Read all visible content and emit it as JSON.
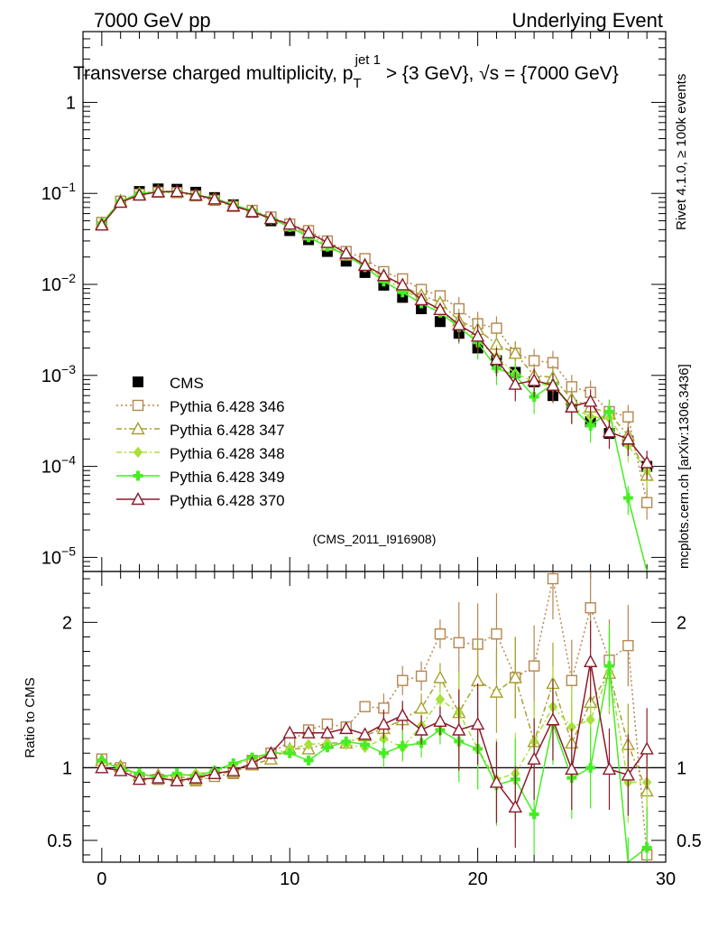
{
  "header": {
    "left": "7000 GeV pp",
    "right": "Underlying Event"
  },
  "side_text": {
    "top": "Rivet 4.1.0, ≥ 100k events",
    "bottom": "mcplots.cern.ch [arXiv:1306.3436]"
  },
  "chart_data": {
    "type": "scatter",
    "title": "Transverse charged multiplicity, p_T^jet 1 > {3 GeV}, √s = {7000 GeV}",
    "title_parts": {
      "pre": "Transverse charged multiplicity, p",
      "sub": "T",
      "sup": "jet 1",
      "mid": " > {3 GeV}, ",
      "sqrt": "√s",
      "post": " = {7000 GeV}"
    },
    "analysis_label": "(CMS_2011_I916908)",
    "xlim": [
      -1,
      30
    ],
    "x_ticks": [
      "0",
      "10",
      "20",
      "30"
    ],
    "x_tick_values": [
      0,
      10,
      20,
      30
    ],
    "main": {
      "yscale": "log",
      "ylim": [
        7e-06,
        6
      ],
      "y_ticks": [
        {
          "value": 1,
          "base": "1",
          "exp": ""
        },
        {
          "value": 0.1,
          "base": "10",
          "exp": "−1"
        },
        {
          "value": 0.01,
          "base": "10",
          "exp": "−2"
        },
        {
          "value": 0.001,
          "base": "10",
          "exp": "−3"
        },
        {
          "value": 0.0001,
          "base": "10",
          "exp": "−4"
        },
        {
          "value": 1e-05,
          "base": "10",
          "exp": "−5"
        }
      ]
    },
    "ratio": {
      "ylabel": "Ratio to CMS",
      "ylim": [
        0.35,
        2.35
      ],
      "y_ticks": [
        {
          "value": 0.5,
          "label": "0.5"
        },
        {
          "value": 1,
          "label": "1"
        },
        {
          "value": 2,
          "label": "2"
        }
      ],
      "reference": 1
    },
    "x": [
      0,
      1,
      2,
      3,
      4,
      5,
      6,
      7,
      8,
      9,
      10,
      11,
      12,
      13,
      14,
      15,
      16,
      17,
      18,
      19,
      20,
      21,
      22,
      23,
      24,
      25,
      26,
      27,
      28,
      29
    ],
    "data": {
      "name": "CMS",
      "color": "#000000",
      "values": [
        0.045,
        0.082,
        0.105,
        0.112,
        0.111,
        0.103,
        0.09,
        0.075,
        0.062,
        0.05,
        0.039,
        0.031,
        0.023,
        0.018,
        0.0135,
        0.0098,
        0.0072,
        0.0054,
        0.0039,
        0.0029,
        0.002,
        0.00145,
        0.00108,
        0.00085,
        0.0006,
        0.00047,
        0.00031,
        0.00023,
        0.00019,
        0.0001
      ]
    },
    "series": [
      {
        "name": "Pythia 6.428 346",
        "color": "#b5874f",
        "marker": "square",
        "dash": "2,3",
        "values": [
          0.048,
          0.082,
          0.098,
          0.103,
          0.102,
          0.094,
          0.084,
          0.072,
          0.065,
          0.055,
          0.046,
          0.039,
          0.03,
          0.023,
          0.0192,
          0.0138,
          0.0115,
          0.0088,
          0.0075,
          0.0054,
          0.0037,
          0.0033,
          0.00175,
          0.00145,
          0.00138,
          0.00075,
          0.00065,
          0.0004,
          0.00035,
          4e-05
        ],
        "ratio": [
          1.06,
          1.0,
          0.93,
          0.92,
          0.92,
          0.91,
          0.94,
          0.96,
          1.05,
          1.1,
          1.18,
          1.26,
          1.3,
          1.28,
          1.42,
          1.41,
          1.6,
          1.63,
          1.92,
          1.86,
          1.85,
          1.92,
          1.62,
          1.7,
          2.3,
          1.6,
          2.1,
          1.74,
          1.84,
          0.4
        ]
      },
      {
        "name": "Pythia 6.428 347",
        "color": "#a8a02e",
        "marker": "triangle",
        "dash": "6,3,2,3",
        "values": [
          0.047,
          0.083,
          0.1,
          0.106,
          0.104,
          0.095,
          0.086,
          0.073,
          0.063,
          0.053,
          0.044,
          0.035,
          0.027,
          0.021,
          0.0165,
          0.0125,
          0.0096,
          0.0076,
          0.0063,
          0.004,
          0.0032,
          0.0022,
          0.00175,
          0.001,
          0.00095,
          0.00055,
          0.00045,
          0.00038,
          0.00022,
          8e-05
        ],
        "ratio": [
          1.05,
          1.01,
          0.95,
          0.95,
          0.94,
          0.92,
          0.96,
          0.97,
          1.02,
          1.06,
          1.13,
          1.13,
          1.17,
          1.17,
          1.22,
          1.27,
          1.33,
          1.41,
          1.62,
          1.38,
          1.6,
          1.52,
          1.62,
          1.18,
          1.58,
          1.17,
          1.45,
          1.65,
          1.16,
          0.84
        ]
      },
      {
        "name": "Pythia 6.428 348",
        "color": "#a8e03c",
        "marker": "diamond",
        "dash": "6,3,2,3",
        "values": [
          0.047,
          0.083,
          0.1,
          0.106,
          0.105,
          0.097,
          0.087,
          0.073,
          0.062,
          0.052,
          0.043,
          0.035,
          0.027,
          0.021,
          0.0158,
          0.0118,
          0.0088,
          0.0068,
          0.0053,
          0.0034,
          0.0024,
          0.0016,
          0.00105,
          0.00085,
          0.00075,
          0.00045,
          0.00035,
          0.00034,
          0.00017,
          9e-05
        ],
        "ratio": [
          1.04,
          1.0,
          0.96,
          0.93,
          0.94,
          0.96,
          0.97,
          1.02,
          1.06,
          1.09,
          1.13,
          1.16,
          1.17,
          1.16,
          1.14,
          1.2,
          1.14,
          1.29,
          1.47,
          1.38,
          1.13,
          0.92,
          0.96,
          1.18,
          1.42,
          1.28,
          1.33,
          1.66,
          0.9,
          0.9
        ]
      },
      {
        "name": "Pythia 6.428 349",
        "color": "#44ee22",
        "marker": "cross",
        "dash": "",
        "values": [
          0.047,
          0.082,
          0.1,
          0.104,
          0.104,
          0.097,
          0.088,
          0.075,
          0.065,
          0.053,
          0.043,
          0.033,
          0.026,
          0.021,
          0.0155,
          0.0108,
          0.0082,
          0.0062,
          0.0049,
          0.0034,
          0.0023,
          0.0012,
          0.001,
          0.00058,
          0.0008,
          0.00045,
          0.00028,
          0.0004,
          4.5e-05,
          4.5e-06
        ],
        "ratio": [
          1.05,
          0.99,
          0.96,
          0.93,
          0.96,
          0.94,
          0.98,
          1.03,
          1.07,
          1.1,
          1.1,
          1.05,
          1.14,
          1.18,
          1.16,
          1.1,
          1.15,
          1.17,
          1.26,
          1.18,
          1.13,
          0.88,
          0.92,
          0.68,
          1.3,
          0.93,
          1.0,
          1.7,
          0.24,
          0.45
        ]
      },
      {
        "name": "Pythia 6.428 370",
        "color": "#8b1a2c",
        "marker": "triangle",
        "dash": "",
        "values": [
          0.045,
          0.08,
          0.096,
          0.104,
          0.105,
          0.096,
          0.087,
          0.073,
          0.063,
          0.053,
          0.046,
          0.037,
          0.029,
          0.022,
          0.0162,
          0.0125,
          0.0099,
          0.0068,
          0.0053,
          0.0036,
          0.0027,
          0.0015,
          0.0008,
          0.00088,
          0.00078,
          0.00045,
          0.00052,
          0.00024,
          0.0002,
          0.00011
        ],
        "ratio": [
          1.0,
          0.98,
          0.92,
          0.93,
          0.91,
          0.93,
          0.96,
          0.98,
          1.03,
          1.1,
          1.24,
          1.24,
          1.24,
          1.27,
          1.23,
          1.3,
          1.36,
          1.26,
          1.32,
          1.26,
          1.3,
          0.9,
          0.73,
          1.06,
          1.33,
          0.99,
          1.73,
          0.99,
          0.95,
          1.13
        ]
      }
    ]
  }
}
